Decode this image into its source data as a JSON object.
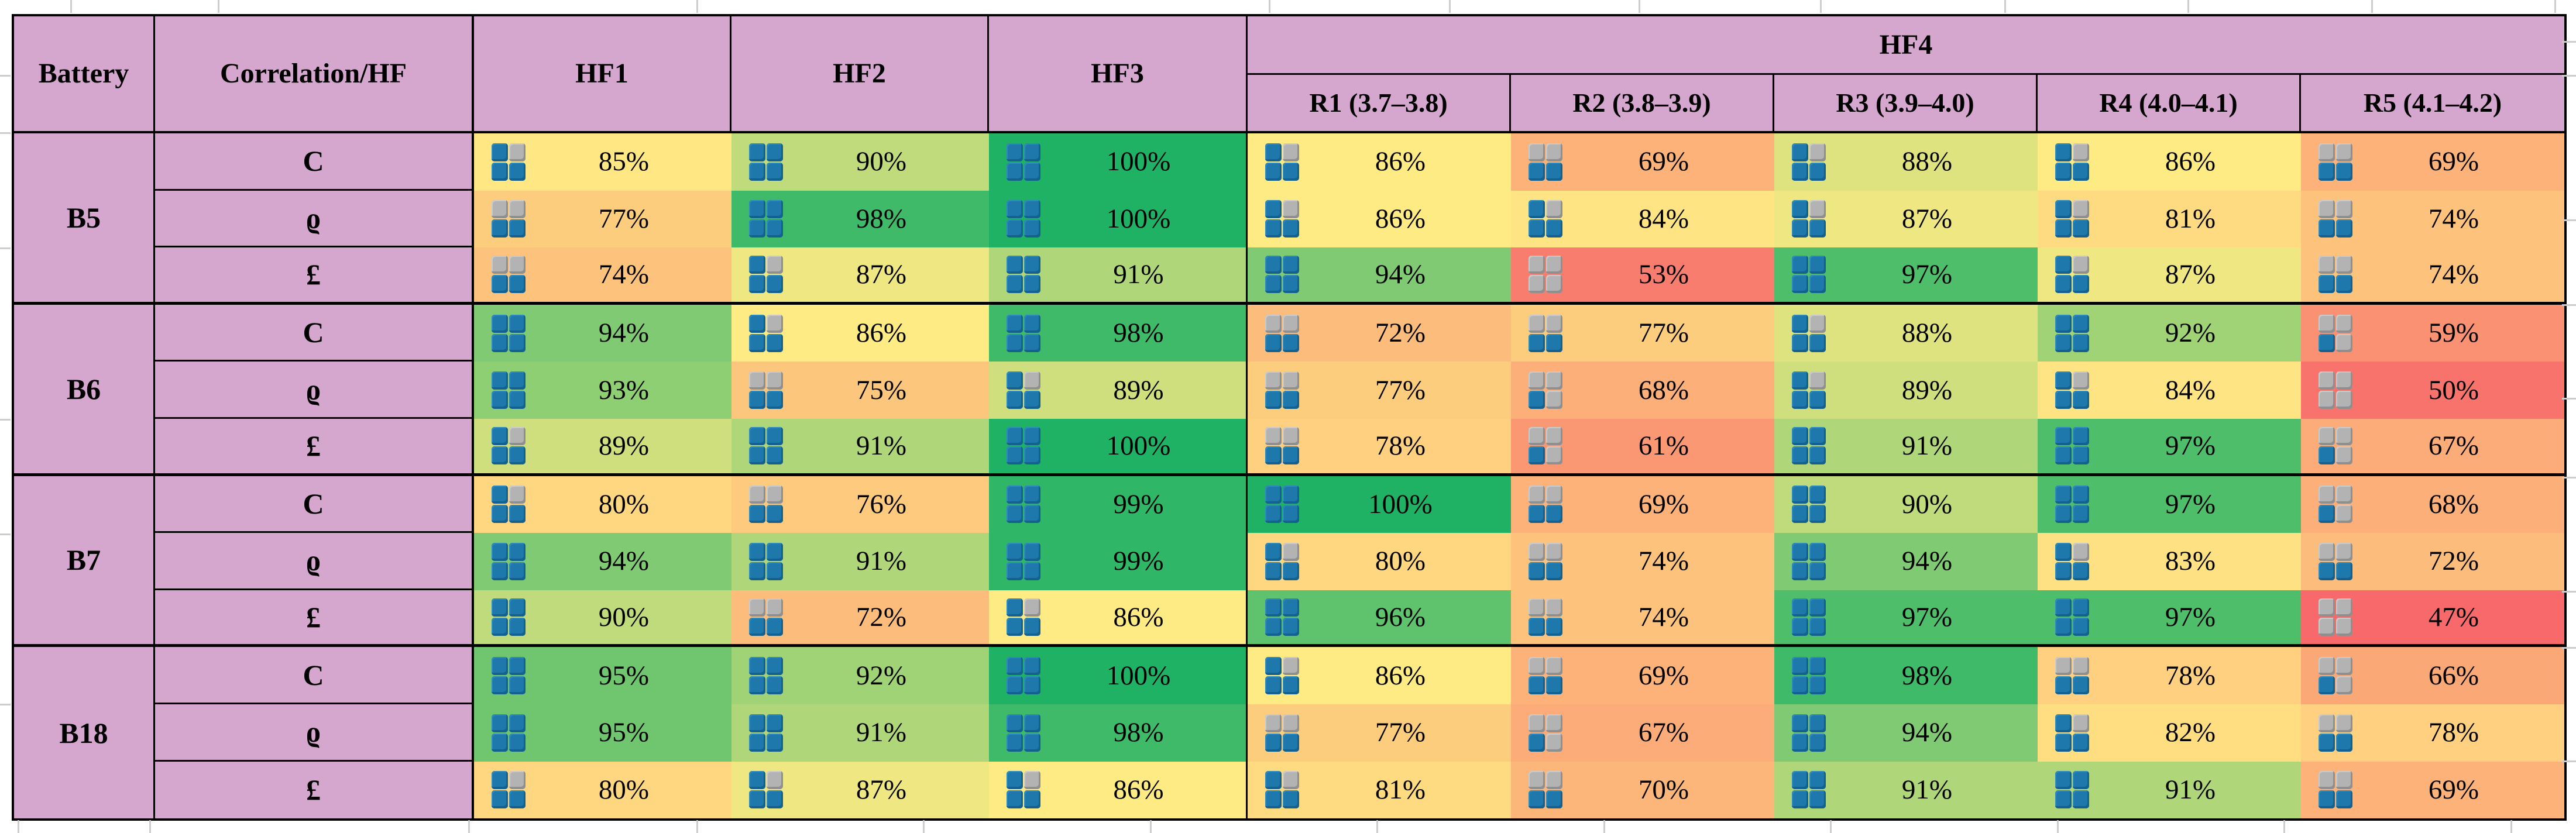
{
  "table": {
    "headers": {
      "battery": "Battery",
      "correlation": "Correlation/HF",
      "hf1": "HF1",
      "hf2": "HF2",
      "hf3": "HF3",
      "hf4": "HF4",
      "hf4_sub": [
        "R1 (3.7–3.8)",
        "R2 (3.8–3.9)",
        "R3 (3.9–4.0)",
        "R4 (4.0–4.1)",
        "R5 (4.1–4.2)"
      ]
    }
  },
  "chart_data": {
    "type": "heatmap",
    "title": "Correlation/HF per battery",
    "value_format": "percent",
    "columns": [
      "HF1",
      "HF2",
      "HF3",
      "HF4 R1 (3.7–3.8)",
      "HF4 R2 (3.8–3.9)",
      "HF4 R3 (3.9–4.0)",
      "HF4 R4 (4.0–4.1)",
      "HF4 R5 (4.1–4.2)"
    ],
    "rows": [
      {
        "battery": "B5",
        "metric": "C",
        "key": "c",
        "values": [
          85,
          90,
          100,
          86,
          69,
          88,
          86,
          69
        ]
      },
      {
        "battery": "B5",
        "metric": "ϱ",
        "key": "rho",
        "values": [
          77,
          98,
          100,
          86,
          84,
          87,
          81,
          74
        ]
      },
      {
        "battery": "B5",
        "metric": "£",
        "key": "pound",
        "values": [
          74,
          87,
          91,
          94,
          53,
          97,
          87,
          74
        ]
      },
      {
        "battery": "B6",
        "metric": "C",
        "key": "c",
        "values": [
          94,
          86,
          98,
          72,
          77,
          88,
          92,
          59
        ]
      },
      {
        "battery": "B6",
        "metric": "ϱ",
        "key": "rho",
        "values": [
          93,
          75,
          89,
          77,
          68,
          89,
          84,
          50
        ]
      },
      {
        "battery": "B6",
        "metric": "£",
        "key": "pound",
        "values": [
          89,
          91,
          100,
          78,
          61,
          91,
          97,
          67
        ]
      },
      {
        "battery": "B7",
        "metric": "C",
        "key": "c",
        "values": [
          80,
          76,
          99,
          100,
          69,
          90,
          97,
          68
        ]
      },
      {
        "battery": "B7",
        "metric": "ϱ",
        "key": "rho",
        "values": [
          94,
          91,
          99,
          80,
          74,
          94,
          83,
          72
        ]
      },
      {
        "battery": "B7",
        "metric": "£",
        "key": "pound",
        "values": [
          90,
          72,
          86,
          96,
          74,
          97,
          97,
          47
        ]
      },
      {
        "battery": "B18",
        "metric": "C",
        "key": "c",
        "values": [
          95,
          92,
          100,
          86,
          69,
          98,
          78,
          66
        ]
      },
      {
        "battery": "B18",
        "metric": "ϱ",
        "key": "rho",
        "values": [
          95,
          91,
          98,
          77,
          67,
          94,
          82,
          78
        ]
      },
      {
        "battery": "B18",
        "metric": "£",
        "key": "pound",
        "values": [
          80,
          87,
          86,
          81,
          70,
          91,
          91,
          69
        ]
      }
    ],
    "value_range": [
      47,
      100
    ],
    "legend": "none",
    "grid": "group-separators"
  },
  "style": {
    "header_bg": "#D5A6CE",
    "border_color": "#000000",
    "color_scale": {
      "stops": [
        [
          47,
          "#F8696B"
        ],
        [
          86,
          "#FFEB84"
        ],
        [
          100,
          "#1FB264"
        ]
      ]
    },
    "icon": {
      "name": "quadrant-fill-icon",
      "blue": "#1E78AC",
      "blue_dark": "#14618F",
      "blue_light": "#2E89BC",
      "gray": "#B3B3B3",
      "gray_dark": "#8F8F8F",
      "gray_light": "#CACACA",
      "thresholds": [
        57.6,
        68.2,
        78.8,
        89.4
      ]
    }
  }
}
